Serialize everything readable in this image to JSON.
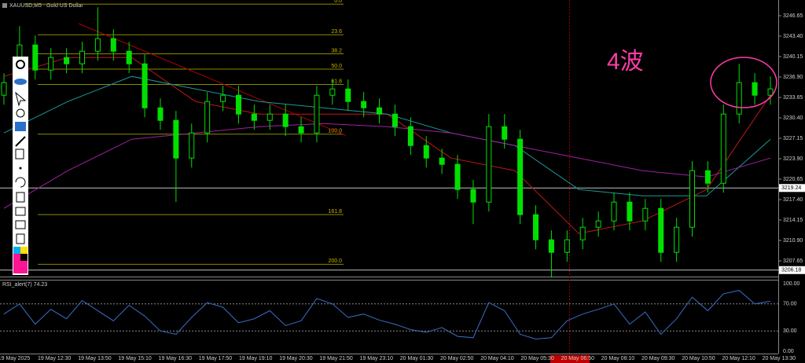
{
  "chart_data": {
    "type": "candlestick",
    "title": "XAUUSD,M5 · Gold US Dollar",
    "annotation": "4波",
    "ylim": [
      3205.4,
      3249.15
    ],
    "yticks": [
      3246.65,
      {
        "value": 3243.4,
        "label": "3243.40"
      },
      3240.15,
      {
        "value": 3236.9,
        "label": "3236.90"
      },
      3233.65,
      {
        "value": 3230.4,
        "label": "3230.40"
      },
      3227.15,
      {
        "value": 3223.9,
        "label": "3223.90"
      },
      3220.65,
      {
        "value": 3217.4,
        "label": "3217.40"
      },
      3214.15,
      {
        "value": 3210.9,
        "label": "3210.90"
      },
      3207.65
    ],
    "hlines": [
      3219.24,
      3206.18
    ],
    "x_labels": [
      "19 May 2025",
      "19 May 12:30",
      "19 May 13:50",
      "19 May 15:10",
      "19 May 16:30",
      "19 May 17:50",
      "19 May 19:10",
      "19 May 20:30",
      "19 May 21:50",
      "19 May 23:10",
      "20 May 01:30",
      "20 May 02:50",
      "20 May 04:10",
      "20 May 05:30",
      "20 May 06:50",
      "20 May 08:10",
      "20 May 09:30",
      "20 May 10:50",
      "20 May 12:10",
      "20 May 13:30"
    ],
    "colors": {
      "candle": "#00e000",
      "hline": "#c0c0c0",
      "fib": "#8a8a00",
      "trend": "#b00000",
      "rsi": "#3a6ec8"
    },
    "open": [
      3234,
      3236,
      3242,
      3238,
      3240,
      3239,
      3241,
      3243,
      3241,
      3239,
      3232,
      3230,
      3224,
      3228,
      3233,
      3234,
      3231,
      3230,
      3231,
      3229,
      3228,
      3234,
      3235,
      3233,
      3232,
      3231,
      3229,
      3226,
      3224,
      3223,
      3219,
      3217,
      3229,
      3227,
      3215,
      3211,
      3209,
      3211,
      3213,
      3214,
      3217,
      3214,
      3216,
      3209,
      3213,
      3222,
      3220,
      3231,
      3236,
      3234
    ],
    "high": [
      3237.5,
      3245,
      3243.5,
      3241.5,
      3241.5,
      3242.5,
      3248,
      3244.5,
      3242.5,
      3240.5,
      3233.5,
      3231.5,
      3229.5,
      3234.5,
      3235.5,
      3235.5,
      3232.5,
      3232.5,
      3232.5,
      3230.5,
      3235.5,
      3236.5,
      3236.5,
      3234.5,
      3233.5,
      3232.5,
      3230.5,
      3227.5,
      3225.5,
      3224.5,
      3220.5,
      3231,
      3231,
      3228.5,
      3216.5,
      3212.5,
      3212.5,
      3214.5,
      3215.5,
      3218.5,
      3218.5,
      3217.5,
      3217.5,
      3214.5,
      3223.5,
      3223.5,
      3232.5,
      3239,
      3237.5,
      3237
    ],
    "low": [
      3232.5,
      3234.5,
      3236.5,
      3236.5,
      3237.5,
      3237.5,
      3239.5,
      3239.5,
      3237.5,
      3230.5,
      3228.5,
      3217,
      3222.5,
      3226.5,
      3231.5,
      3229.5,
      3228.5,
      3228.5,
      3227.5,
      3226.5,
      3226.5,
      3232.5,
      3231.5,
      3230.5,
      3229.5,
      3227.5,
      3224.5,
      3222.5,
      3221.5,
      3217.5,
      3213.5,
      3215.5,
      3225.5,
      3213.5,
      3209.5,
      3205,
      3207.5,
      3209.5,
      3211.5,
      3212.5,
      3212.5,
      3212.5,
      3207.5,
      3207.5,
      3211.5,
      3218.5,
      3218.5,
      3229.5,
      3232.5,
      3232.5
    ],
    "close": [
      3236,
      3242,
      3238,
      3240,
      3239,
      3241,
      3243,
      3241,
      3239,
      3232,
      3230,
      3224,
      3228,
      3233,
      3234,
      3231,
      3230,
      3231,
      3229,
      3228,
      3234,
      3235,
      3233,
      3232,
      3231,
      3229,
      3226,
      3224,
      3223,
      3219,
      3217,
      3229,
      3227,
      3215,
      3211,
      3209,
      3211,
      3213,
      3214,
      3217,
      3214,
      3216,
      3209,
      3213,
      3222,
      3220,
      3231,
      3236,
      3234,
      3235
    ],
    "series": [
      {
        "name": null,
        "color": "#c01818",
        "values": [
          3237,
          3240,
          3240,
          3233,
          3231,
          3231,
          3231,
          3224,
          3222,
          3212,
          3214,
          3219,
          3234
        ]
      },
      {
        "name": null,
        "color": "#1a9a9a",
        "values": [
          3228,
          3233,
          3237,
          3235,
          3233,
          3232,
          3231,
          3228,
          3226,
          3219,
          3218,
          3218,
          3227
        ]
      },
      {
        "name": null,
        "color": "#a020a0",
        "values": [
          3216,
          3222,
          3227,
          3228,
          3229,
          3229.5,
          3229,
          3228,
          3226,
          3224,
          3222,
          3221,
          3224
        ]
      }
    ],
    "trendline": [
      3245.4,
      3227.6
    ],
    "fib": {
      "price_0": 3248.5,
      "price_100": 3227.8,
      "levels": [
        {
          "value": 0,
          "label": "0.0"
        },
        23.6,
        38.2,
        {
          "value": 50,
          "label": "50.0"
        },
        61.8,
        {
          "value": 100,
          "label": "100.0"
        },
        161.8,
        {
          "value": 200,
          "label": "200.0"
        }
      ]
    },
    "rsi": {
      "label": "RSI_alert(7) 74.23",
      "ylim": [
        0,
        100
      ],
      "yticks": [
        {
          "value": 100,
          "label": "100.00"
        },
        {
          "value": 70,
          "label": "70.00"
        },
        {
          "value": 30,
          "label": "30.00"
        },
        {
          "value": 0,
          "label": "0.00"
        }
      ],
      "values": [
        55,
        70,
        40,
        62,
        48,
        75,
        60,
        45,
        68,
        52,
        30,
        25,
        50,
        72,
        65,
        42,
        48,
        60,
        38,
        45,
        78,
        70,
        50,
        55,
        46,
        40,
        32,
        28,
        35,
        22,
        20,
        72,
        60,
        25,
        18,
        20,
        45,
        55,
        62,
        70,
        40,
        58,
        25,
        48,
        80,
        60,
        85,
        90,
        70,
        74
      ]
    }
  }
}
